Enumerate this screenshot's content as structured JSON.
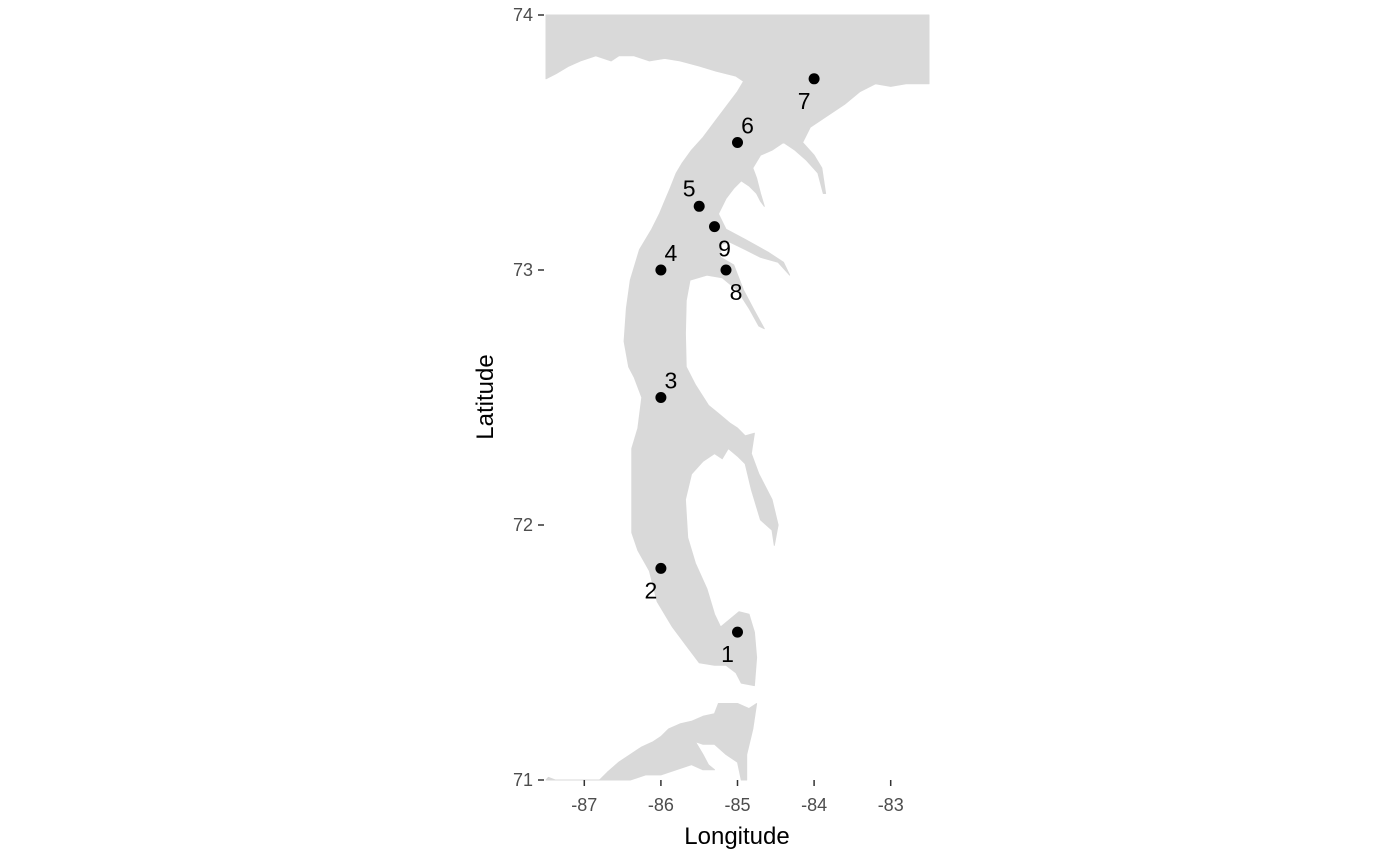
{
  "chart_data": {
    "type": "scatter",
    "title": "",
    "xlabel": "Longitude",
    "ylabel": "Latitude",
    "xlim": [
      -87.5,
      -82.5
    ],
    "ylim": [
      71,
      74
    ],
    "x_ticks": [
      -87,
      -86,
      -85,
      -84,
      -83
    ],
    "y_ticks": [
      71,
      72,
      73,
      74
    ],
    "x_tick_labels": [
      "-87",
      "-86",
      "-85",
      "-84",
      "-83"
    ],
    "y_tick_labels": [
      "71",
      "72",
      "73",
      "74"
    ],
    "grid": false,
    "background": "none",
    "land_color": "#d9d9d9",
    "point_color": "#000000",
    "points": [
      {
        "label": "1",
        "lon": -85.0,
        "lat": 71.58,
        "label_pos": "below-left"
      },
      {
        "label": "2",
        "lon": -86.0,
        "lat": 71.83,
        "label_pos": "below-left"
      },
      {
        "label": "3",
        "lon": -86.0,
        "lat": 72.5,
        "label_pos": "above-right"
      },
      {
        "label": "4",
        "lon": -86.0,
        "lat": 73.0,
        "label_pos": "above-right"
      },
      {
        "label": "5",
        "lon": -85.5,
        "lat": 73.25,
        "label_pos": "above-left"
      },
      {
        "label": "6",
        "lon": -85.0,
        "lat": 73.5,
        "label_pos": "above-right"
      },
      {
        "label": "7",
        "lon": -84.0,
        "lat": 73.75,
        "label_pos": "below-left"
      },
      {
        "label": "8",
        "lon": -85.15,
        "lat": 73.0,
        "label_pos": "below-right"
      },
      {
        "label": "9",
        "lon": -85.3,
        "lat": 73.17,
        "label_pos": "below-right"
      }
    ],
    "land_polygons": [
      {
        "name": "main-waterbody",
        "coords": [
          [
            -87.5,
            73.75
          ],
          [
            -87.37,
            73.77
          ],
          [
            -87.2,
            73.8
          ],
          [
            -87.05,
            73.82
          ],
          [
            -86.85,
            73.84
          ],
          [
            -86.65,
            73.82
          ],
          [
            -86.55,
            73.84
          ],
          [
            -86.35,
            73.84
          ],
          [
            -86.15,
            73.82
          ],
          [
            -85.95,
            73.83
          ],
          [
            -85.75,
            73.82
          ],
          [
            -85.5,
            73.8
          ],
          [
            -85.28,
            73.78
          ],
          [
            -85.02,
            73.76
          ],
          [
            -84.92,
            73.74
          ],
          [
            -85.0,
            73.7
          ],
          [
            -85.15,
            73.64
          ],
          [
            -85.3,
            73.58
          ],
          [
            -85.45,
            73.52
          ],
          [
            -85.6,
            73.47
          ],
          [
            -85.72,
            73.42
          ],
          [
            -85.8,
            73.38
          ],
          [
            -85.88,
            73.32
          ],
          [
            -85.95,
            73.27
          ],
          [
            -86.02,
            73.22
          ],
          [
            -86.12,
            73.16
          ],
          [
            -86.28,
            73.08
          ],
          [
            -86.4,
            72.96
          ],
          [
            -86.45,
            72.85
          ],
          [
            -86.48,
            72.72
          ],
          [
            -86.42,
            72.62
          ],
          [
            -86.35,
            72.58
          ],
          [
            -86.25,
            72.5
          ],
          [
            -86.3,
            72.38
          ],
          [
            -86.38,
            72.3
          ],
          [
            -86.38,
            72.12
          ],
          [
            -86.38,
            71.97
          ],
          [
            -86.3,
            71.9
          ],
          [
            -86.15,
            71.82
          ],
          [
            -86.05,
            71.7
          ],
          [
            -85.85,
            71.6
          ],
          [
            -85.65,
            71.52
          ],
          [
            -85.5,
            71.46
          ],
          [
            -85.3,
            71.45
          ],
          [
            -85.15,
            71.45
          ],
          [
            -85.02,
            71.42
          ],
          [
            -84.95,
            71.38
          ],
          [
            -84.78,
            71.37
          ],
          [
            -84.75,
            71.48
          ],
          [
            -84.78,
            71.58
          ],
          [
            -84.85,
            71.65
          ],
          [
            -84.98,
            71.66
          ],
          [
            -85.1,
            71.63
          ],
          [
            -85.22,
            71.6
          ],
          [
            -85.3,
            71.65
          ],
          [
            -85.4,
            71.75
          ],
          [
            -85.55,
            71.85
          ],
          [
            -85.65,
            71.95
          ],
          [
            -85.68,
            72.1
          ],
          [
            -85.6,
            72.2
          ],
          [
            -85.45,
            72.25
          ],
          [
            -85.3,
            72.28
          ],
          [
            -85.2,
            72.26
          ],
          [
            -85.12,
            72.3
          ],
          [
            -85.0,
            72.27
          ],
          [
            -84.9,
            72.24
          ],
          [
            -84.82,
            72.14
          ],
          [
            -84.7,
            72.02
          ],
          [
            -84.55,
            71.98
          ],
          [
            -84.52,
            71.92
          ],
          [
            -84.47,
            72.0
          ],
          [
            -84.55,
            72.1
          ],
          [
            -84.72,
            72.2
          ],
          [
            -84.82,
            72.28
          ],
          [
            -84.78,
            72.36
          ],
          [
            -84.9,
            72.35
          ],
          [
            -85.0,
            72.38
          ],
          [
            -85.1,
            72.4
          ],
          [
            -85.22,
            72.43
          ],
          [
            -85.38,
            72.47
          ],
          [
            -85.55,
            72.55
          ],
          [
            -85.67,
            72.62
          ],
          [
            -85.68,
            72.75
          ],
          [
            -85.67,
            72.88
          ],
          [
            -85.62,
            72.96
          ],
          [
            -85.4,
            72.98
          ],
          [
            -85.2,
            72.97
          ],
          [
            -85.0,
            72.92
          ],
          [
            -84.85,
            72.85
          ],
          [
            -84.72,
            72.78
          ],
          [
            -84.65,
            72.77
          ],
          [
            -84.78,
            72.84
          ],
          [
            -84.92,
            72.92
          ],
          [
            -85.05,
            73.02
          ],
          [
            -85.22,
            73.05
          ],
          [
            -85.22,
            73.1
          ],
          [
            -85.1,
            73.11
          ],
          [
            -84.9,
            73.08
          ],
          [
            -84.7,
            73.05
          ],
          [
            -84.47,
            73.03
          ],
          [
            -84.32,
            72.98
          ],
          [
            -84.4,
            73.03
          ],
          [
            -84.6,
            73.07
          ],
          [
            -84.9,
            73.12
          ],
          [
            -85.15,
            73.16
          ],
          [
            -85.25,
            73.22
          ],
          [
            -85.15,
            73.28
          ],
          [
            -85.05,
            73.32
          ],
          [
            -84.95,
            73.35
          ],
          [
            -84.85,
            73.33
          ],
          [
            -84.75,
            73.3
          ],
          [
            -84.7,
            73.27
          ],
          [
            -84.65,
            73.25
          ],
          [
            -84.7,
            73.3
          ],
          [
            -84.75,
            73.36
          ],
          [
            -84.8,
            73.4
          ],
          [
            -84.7,
            73.45
          ],
          [
            -84.55,
            73.47
          ],
          [
            -84.4,
            73.5
          ],
          [
            -84.25,
            73.47
          ],
          [
            -84.1,
            73.43
          ],
          [
            -83.95,
            73.38
          ],
          [
            -83.88,
            73.3
          ],
          [
            -83.85,
            73.3
          ],
          [
            -83.9,
            73.4
          ],
          [
            -84.0,
            73.45
          ],
          [
            -84.15,
            73.5
          ],
          [
            -84.05,
            73.56
          ],
          [
            -83.85,
            73.6
          ],
          [
            -83.6,
            73.65
          ],
          [
            -83.4,
            73.7
          ],
          [
            -83.2,
            73.73
          ],
          [
            -83.0,
            73.72
          ],
          [
            -82.8,
            73.73
          ],
          [
            -82.5,
            73.73
          ],
          [
            -82.5,
            74.0
          ],
          [
            -87.5,
            74.0
          ]
        ]
      },
      {
        "name": "southern-inlet",
        "coords": [
          [
            -87.5,
            71.0
          ],
          [
            -87.47,
            71.01
          ],
          [
            -87.38,
            71.0
          ],
          [
            -86.8,
            71.0
          ],
          [
            -86.7,
            71.03
          ],
          [
            -86.55,
            71.07
          ],
          [
            -86.4,
            71.1
          ],
          [
            -86.25,
            71.13
          ],
          [
            -86.1,
            71.15
          ],
          [
            -86.0,
            71.17
          ],
          [
            -85.9,
            71.2
          ],
          [
            -85.75,
            71.22
          ],
          [
            -85.6,
            71.23
          ],
          [
            -85.45,
            71.25
          ],
          [
            -85.3,
            71.26
          ],
          [
            -85.25,
            71.3
          ],
          [
            -85.15,
            71.3
          ],
          [
            -85.0,
            71.3
          ],
          [
            -84.85,
            71.28
          ],
          [
            -84.75,
            71.3
          ],
          [
            -84.8,
            71.2
          ],
          [
            -84.88,
            71.1
          ],
          [
            -84.88,
            71.0
          ],
          [
            -84.95,
            71.0
          ],
          [
            -85.0,
            71.07
          ],
          [
            -85.15,
            71.1
          ],
          [
            -85.3,
            71.14
          ],
          [
            -85.45,
            71.14
          ],
          [
            -85.55,
            71.15
          ],
          [
            -85.45,
            71.1
          ],
          [
            -85.38,
            71.06
          ],
          [
            -85.3,
            71.04
          ],
          [
            -85.45,
            71.04
          ],
          [
            -85.6,
            71.06
          ],
          [
            -85.8,
            71.04
          ],
          [
            -86.0,
            71.02
          ],
          [
            -86.2,
            71.02
          ],
          [
            -86.4,
            71.0
          ]
        ]
      }
    ]
  }
}
